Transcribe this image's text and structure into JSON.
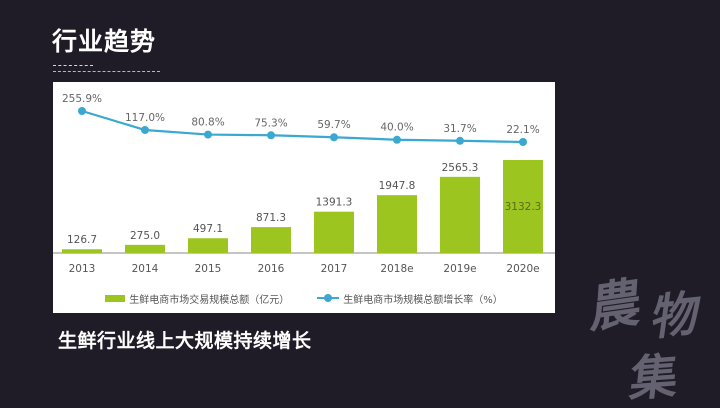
{
  "slide": {
    "title": "行业趋势",
    "subtitle": "生鲜行业线上大规模持续增长",
    "watermark": [
      "農",
      "物",
      "集"
    ],
    "background_color": "#1f1c27"
  },
  "chart_data": {
    "type": "bar+line",
    "title": "",
    "categories": [
      "2013",
      "2014",
      "2015",
      "2016",
      "2017",
      "2018e",
      "2019e",
      "2020e"
    ],
    "series": [
      {
        "name": "生鲜电商市场交易规模总额（亿元）",
        "type": "bar",
        "color": "#9dc520",
        "values": [
          126.7,
          275.0,
          497.1,
          871.3,
          1391.3,
          1947.8,
          2565.3,
          3132.3
        ],
        "labels": [
          "126.7",
          "275.0",
          "497.1",
          "871.3",
          "1391.3",
          "1947.8",
          "2565.3",
          "3132.3"
        ]
      },
      {
        "name": "生鲜电商市场规模总额增长率（%）",
        "type": "line",
        "color": "#3aa8d0",
        "values": [
          255.9,
          117.0,
          80.8,
          75.3,
          59.7,
          40.0,
          31.7,
          22.1
        ],
        "labels": [
          "255.9%",
          "117.0%",
          "80.8%",
          "75.3%",
          "59.7%",
          "40.0%",
          "31.7%",
          "22.1%"
        ]
      }
    ],
    "xlabel": "",
    "ylabel": "",
    "grid": false,
    "legend_position": "bottom",
    "axis_line_color": "#888888"
  },
  "legend": {
    "bar_label": "生鲜电商市场交易规模总额（亿元）",
    "line_label": "生鲜电商市场规模总额增长率（%）"
  }
}
